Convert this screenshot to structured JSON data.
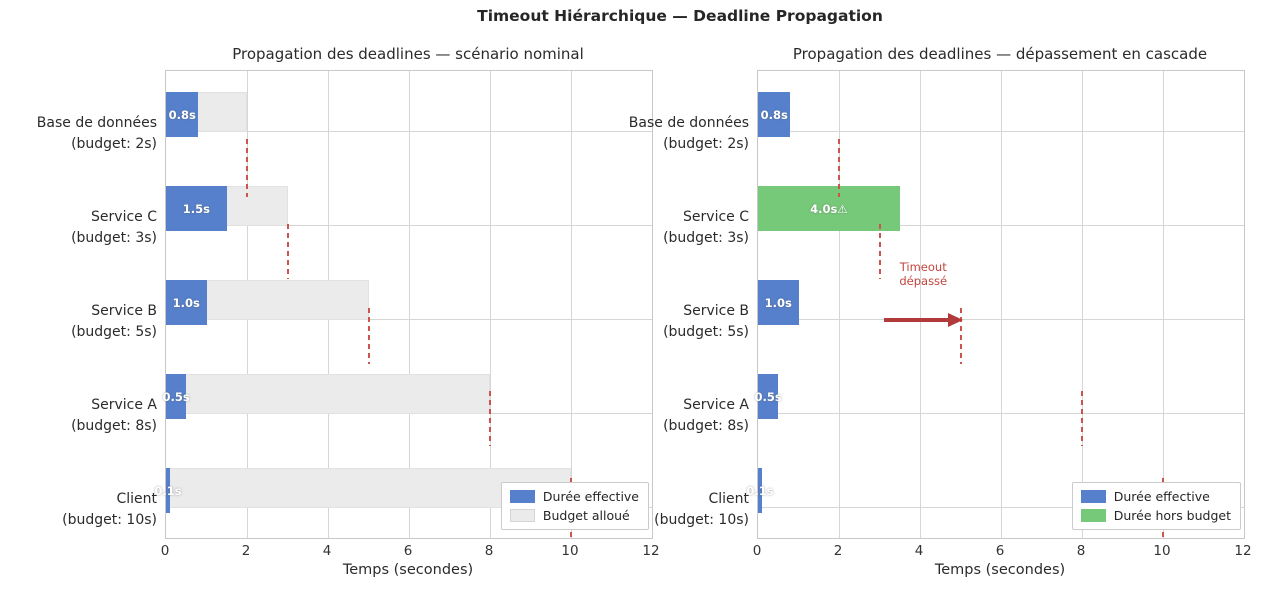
{
  "figure": {
    "title": "Timeout Hiérarchique — Deadline Propagation"
  },
  "colors": {
    "effective": "#5680cb",
    "budget": "#ebebeb",
    "over_budget": "#77c97a",
    "deadline_line": "#cd534f",
    "annotation_text": "#c2453e",
    "annotation_arrow": "#b23a3a"
  },
  "chart_data": [
    {
      "type": "bar",
      "orientation": "horizontal",
      "title": "Propagation des deadlines — scénario nominal",
      "xlabel": "Temps (secondes)",
      "xlim": [
        0,
        12
      ],
      "x_ticks": [
        0,
        2,
        4,
        6,
        8,
        10,
        12
      ],
      "grid": true,
      "categories": [
        {
          "line1": "Base de données",
          "line2": "(budget: 2s)"
        },
        {
          "line1": "Service C",
          "line2": "(budget: 3s)"
        },
        {
          "line1": "Service B",
          "line2": "(budget: 5s)"
        },
        {
          "line1": "Service A",
          "line2": "(budget: 8s)"
        },
        {
          "line1": "Client",
          "line2": "(budget: 10s)"
        }
      ],
      "series": [
        {
          "name": "Durée effective",
          "color": "#5680cb",
          "values": [
            0.8,
            1.5,
            1.0,
            0.5,
            0.1
          ],
          "bar_labels": [
            "0.8s",
            "1.5s",
            "1.0s",
            "0.5s",
            "0.1s"
          ]
        },
        {
          "name": "Budget alloué",
          "color": "#ebebeb",
          "values": [
            2,
            3,
            5,
            8,
            10
          ],
          "bar_labels": [
            null,
            null,
            null,
            null,
            null
          ]
        }
      ],
      "deadline_lines": {
        "x": [
          2,
          3,
          5,
          8,
          10
        ],
        "color": "#cd534f",
        "style": "dashed"
      },
      "legend": {
        "position": "lower right",
        "entries": [
          {
            "label": "Durée effective",
            "color": "#5680cb",
            "light": false
          },
          {
            "label": "Budget alloué",
            "color": "#ebebeb",
            "light": true
          }
        ]
      }
    },
    {
      "type": "bar",
      "orientation": "horizontal",
      "title": "Propagation des deadlines — dépassement en cascade",
      "xlabel": "Temps (secondes)",
      "xlim": [
        0,
        12
      ],
      "x_ticks": [
        0,
        2,
        4,
        6,
        8,
        10,
        12
      ],
      "grid": true,
      "categories": [
        {
          "line1": "Base de données",
          "line2": "(budget: 2s)"
        },
        {
          "line1": "Service C",
          "line2": "(budget: 3s)"
        },
        {
          "line1": "Service B",
          "line2": "(budget: 5s)"
        },
        {
          "line1": "Service A",
          "line2": "(budget: 8s)"
        },
        {
          "line1": "Client",
          "line2": "(budget: 10s)"
        }
      ],
      "series": [
        {
          "name": "Durée effective",
          "color": "#5680cb",
          "values": [
            0.8,
            null,
            1.0,
            0.5,
            0.1
          ],
          "bar_labels": [
            "0.8s",
            null,
            "1.0s",
            "0.5s",
            "0.1s"
          ]
        },
        {
          "name": "Durée hors budget",
          "color": "#77c97a",
          "values": [
            null,
            4.0,
            null,
            null,
            null
          ],
          "display_values": [
            null,
            3.5,
            null,
            null,
            null
          ],
          "bar_labels": [
            null,
            "4.0s⚠",
            null,
            null,
            null
          ]
        }
      ],
      "deadline_lines": {
        "x": [
          2,
          3,
          5,
          8,
          10
        ],
        "color": "#cd534f",
        "style": "dashed"
      },
      "annotation": {
        "text_lines": [
          "Timeout",
          "dépassé"
        ],
        "color": "#c2453e",
        "arrow_color": "#b23a3a",
        "arrow_from_x": 3.1,
        "arrow_to_x": 5.05,
        "at_category": "Service B"
      },
      "legend": {
        "position": "lower right",
        "entries": [
          {
            "label": "Durée effective",
            "color": "#5680cb",
            "light": false
          },
          {
            "label": "Durée hors budget",
            "color": "#77c97a",
            "light": false
          }
        ]
      }
    }
  ]
}
